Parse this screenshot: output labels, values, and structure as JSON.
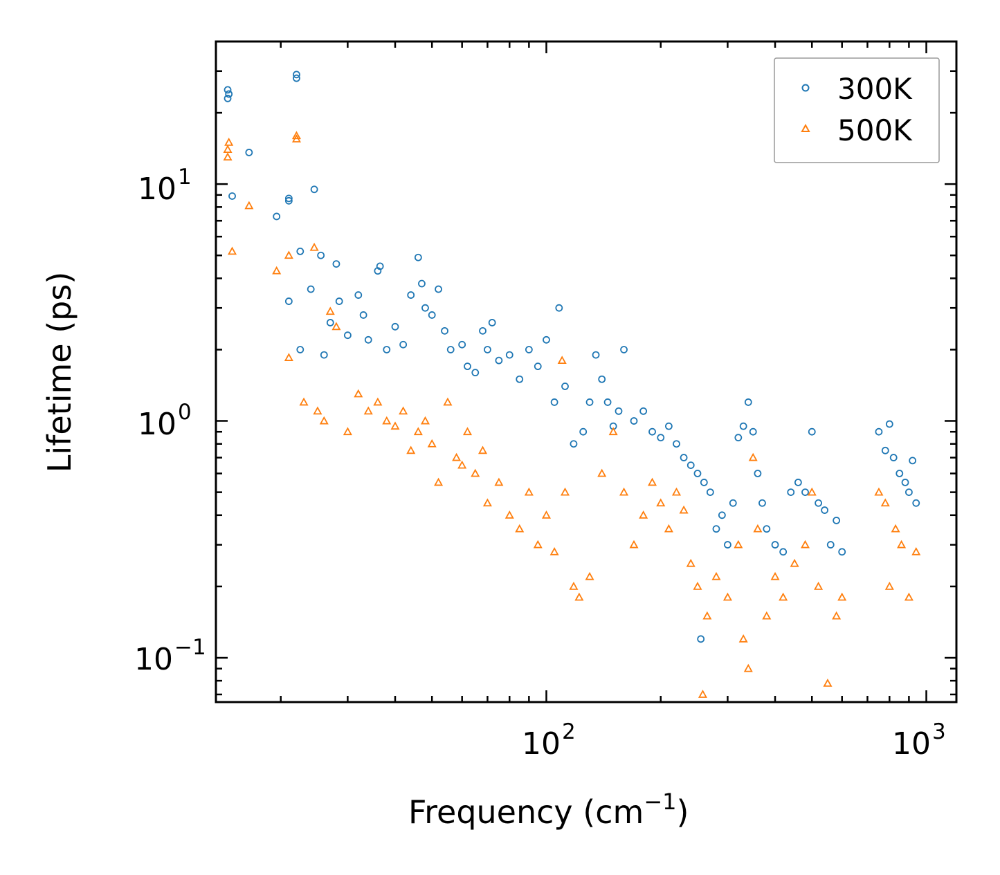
{
  "chart_data": {
    "type": "scatter",
    "title": "",
    "xlabel": "Frequency (cm",
    "xlabel_sup": "−1",
    "xlabel_suffix": ")",
    "ylabel": "Lifetime (ps)",
    "xscale": "log",
    "yscale": "log",
    "xlim": [
      13.5,
      1200
    ],
    "ylim": [
      0.065,
      40
    ],
    "x_ticks": [
      {
        "base": "10",
        "exp": "2",
        "value": 100
      },
      {
        "base": "10",
        "exp": "3",
        "value": 1000
      }
    ],
    "y_ticks": [
      {
        "base": "10",
        "exp": "−1",
        "value": 0.1
      },
      {
        "base": "10",
        "exp": "0",
        "value": 1
      },
      {
        "base": "10",
        "exp": "1",
        "value": 10
      }
    ],
    "legend_position": "top-right",
    "series": [
      {
        "name": "300K",
        "marker": "circle",
        "color": "#1f77b4",
        "points": [
          [
            14.5,
            25
          ],
          [
            14.5,
            23
          ],
          [
            14.6,
            24
          ],
          [
            14.9,
            8.9
          ],
          [
            16.5,
            13.6
          ],
          [
            19.5,
            7.3
          ],
          [
            21,
            8.7
          ],
          [
            21,
            8.5
          ],
          [
            21,
            3.2
          ],
          [
            22,
            29
          ],
          [
            22,
            28
          ],
          [
            22.5,
            5.2
          ],
          [
            22.5,
            2.0
          ],
          [
            24,
            3.6
          ],
          [
            24.5,
            9.5
          ],
          [
            25.5,
            5.0
          ],
          [
            26,
            1.9
          ],
          [
            27,
            2.6
          ],
          [
            28,
            4.6
          ],
          [
            28.5,
            3.2
          ],
          [
            30,
            2.3
          ],
          [
            32,
            3.4
          ],
          [
            33,
            2.8
          ],
          [
            34,
            2.2
          ],
          [
            36,
            4.3
          ],
          [
            36.5,
            4.5
          ],
          [
            38,
            2.0
          ],
          [
            40,
            2.5
          ],
          [
            42,
            2.1
          ],
          [
            44,
            3.4
          ],
          [
            46,
            4.9
          ],
          [
            47,
            3.8
          ],
          [
            48,
            3.0
          ],
          [
            50,
            2.8
          ],
          [
            52,
            3.6
          ],
          [
            54,
            2.4
          ],
          [
            56,
            2.0
          ],
          [
            60,
            2.1
          ],
          [
            62,
            1.7
          ],
          [
            65,
            1.6
          ],
          [
            68,
            2.4
          ],
          [
            70,
            2.0
          ],
          [
            72,
            2.6
          ],
          [
            75,
            1.8
          ],
          [
            80,
            1.9
          ],
          [
            85,
            1.5
          ],
          [
            90,
            2.0
          ],
          [
            95,
            1.7
          ],
          [
            100,
            2.2
          ],
          [
            105,
            1.2
          ],
          [
            108,
            3.0
          ],
          [
            112,
            1.4
          ],
          [
            118,
            0.8
          ],
          [
            125,
            0.9
          ],
          [
            130,
            1.2
          ],
          [
            135,
            1.9
          ],
          [
            140,
            1.5
          ],
          [
            145,
            1.2
          ],
          [
            150,
            0.95
          ],
          [
            155,
            1.1
          ],
          [
            160,
            2.0
          ],
          [
            170,
            1.0
          ],
          [
            180,
            1.1
          ],
          [
            190,
            0.9
          ],
          [
            200,
            0.85
          ],
          [
            210,
            0.95
          ],
          [
            220,
            0.8
          ],
          [
            230,
            0.7
          ],
          [
            240,
            0.65
          ],
          [
            250,
            0.6
          ],
          [
            255,
            0.12
          ],
          [
            260,
            0.55
          ],
          [
            270,
            0.5
          ],
          [
            280,
            0.35
          ],
          [
            290,
            0.4
          ],
          [
            300,
            0.3
          ],
          [
            310,
            0.45
          ],
          [
            320,
            0.85
          ],
          [
            330,
            0.95
          ],
          [
            340,
            1.2
          ],
          [
            350,
            0.9
          ],
          [
            360,
            0.6
          ],
          [
            370,
            0.45
          ],
          [
            380,
            0.35
          ],
          [
            400,
            0.3
          ],
          [
            420,
            0.28
          ],
          [
            440,
            0.5
          ],
          [
            460,
            0.55
          ],
          [
            480,
            0.5
          ],
          [
            500,
            0.9
          ],
          [
            520,
            0.45
          ],
          [
            540,
            0.42
          ],
          [
            560,
            0.3
          ],
          [
            580,
            0.38
          ],
          [
            600,
            0.28
          ],
          [
            750,
            0.9
          ],
          [
            780,
            0.75
          ],
          [
            800,
            0.97
          ],
          [
            820,
            0.7
          ],
          [
            850,
            0.6
          ],
          [
            880,
            0.55
          ],
          [
            900,
            0.5
          ],
          [
            920,
            0.68
          ],
          [
            940,
            0.45
          ]
        ]
      },
      {
        "name": "500K",
        "marker": "triangle",
        "color": "#ff7f0e",
        "points": [
          [
            14.5,
            14
          ],
          [
            14.5,
            13
          ],
          [
            14.6,
            15
          ],
          [
            14.9,
            5.2
          ],
          [
            16.5,
            8.1
          ],
          [
            19.5,
            4.3
          ],
          [
            21,
            5.0
          ],
          [
            21,
            1.85
          ],
          [
            22,
            16
          ],
          [
            22,
            15.5
          ],
          [
            23,
            1.2
          ],
          [
            24.5,
            5.4
          ],
          [
            25,
            1.1
          ],
          [
            26,
            1.0
          ],
          [
            27,
            2.9
          ],
          [
            28,
            2.5
          ],
          [
            30,
            0.9
          ],
          [
            32,
            1.3
          ],
          [
            34,
            1.1
          ],
          [
            36,
            1.2
          ],
          [
            38,
            1.0
          ],
          [
            40,
            0.95
          ],
          [
            42,
            1.1
          ],
          [
            44,
            0.75
          ],
          [
            46,
            0.9
          ],
          [
            48,
            1.0
          ],
          [
            50,
            0.8
          ],
          [
            52,
            0.55
          ],
          [
            55,
            1.2
          ],
          [
            58,
            0.7
          ],
          [
            60,
            0.65
          ],
          [
            62,
            0.9
          ],
          [
            65,
            0.6
          ],
          [
            68,
            0.75
          ],
          [
            70,
            0.45
          ],
          [
            75,
            0.55
          ],
          [
            80,
            0.4
          ],
          [
            85,
            0.35
          ],
          [
            90,
            0.5
          ],
          [
            95,
            0.3
          ],
          [
            100,
            0.4
          ],
          [
            105,
            0.28
          ],
          [
            110,
            1.8
          ],
          [
            112,
            0.5
          ],
          [
            118,
            0.2
          ],
          [
            122,
            0.18
          ],
          [
            130,
            0.22
          ],
          [
            140,
            0.6
          ],
          [
            150,
            0.9
          ],
          [
            160,
            0.5
          ],
          [
            170,
            0.3
          ],
          [
            180,
            0.4
          ],
          [
            190,
            0.55
          ],
          [
            200,
            0.45
          ],
          [
            210,
            0.35
          ],
          [
            220,
            0.5
          ],
          [
            230,
            0.42
          ],
          [
            240,
            0.25
          ],
          [
            250,
            0.2
          ],
          [
            258,
            0.07
          ],
          [
            265,
            0.15
          ],
          [
            280,
            0.22
          ],
          [
            300,
            0.18
          ],
          [
            320,
            0.3
          ],
          [
            330,
            0.12
          ],
          [
            340,
            0.09
          ],
          [
            350,
            0.7
          ],
          [
            360,
            0.35
          ],
          [
            380,
            0.15
          ],
          [
            400,
            0.22
          ],
          [
            420,
            0.18
          ],
          [
            450,
            0.25
          ],
          [
            480,
            0.3
          ],
          [
            500,
            0.5
          ],
          [
            520,
            0.2
          ],
          [
            550,
            0.078
          ],
          [
            580,
            0.15
          ],
          [
            600,
            0.18
          ],
          [
            750,
            0.5
          ],
          [
            780,
            0.45
          ],
          [
            800,
            0.2
          ],
          [
            830,
            0.35
          ],
          [
            860,
            0.3
          ],
          [
            900,
            0.18
          ],
          [
            940,
            0.28
          ]
        ]
      }
    ]
  }
}
